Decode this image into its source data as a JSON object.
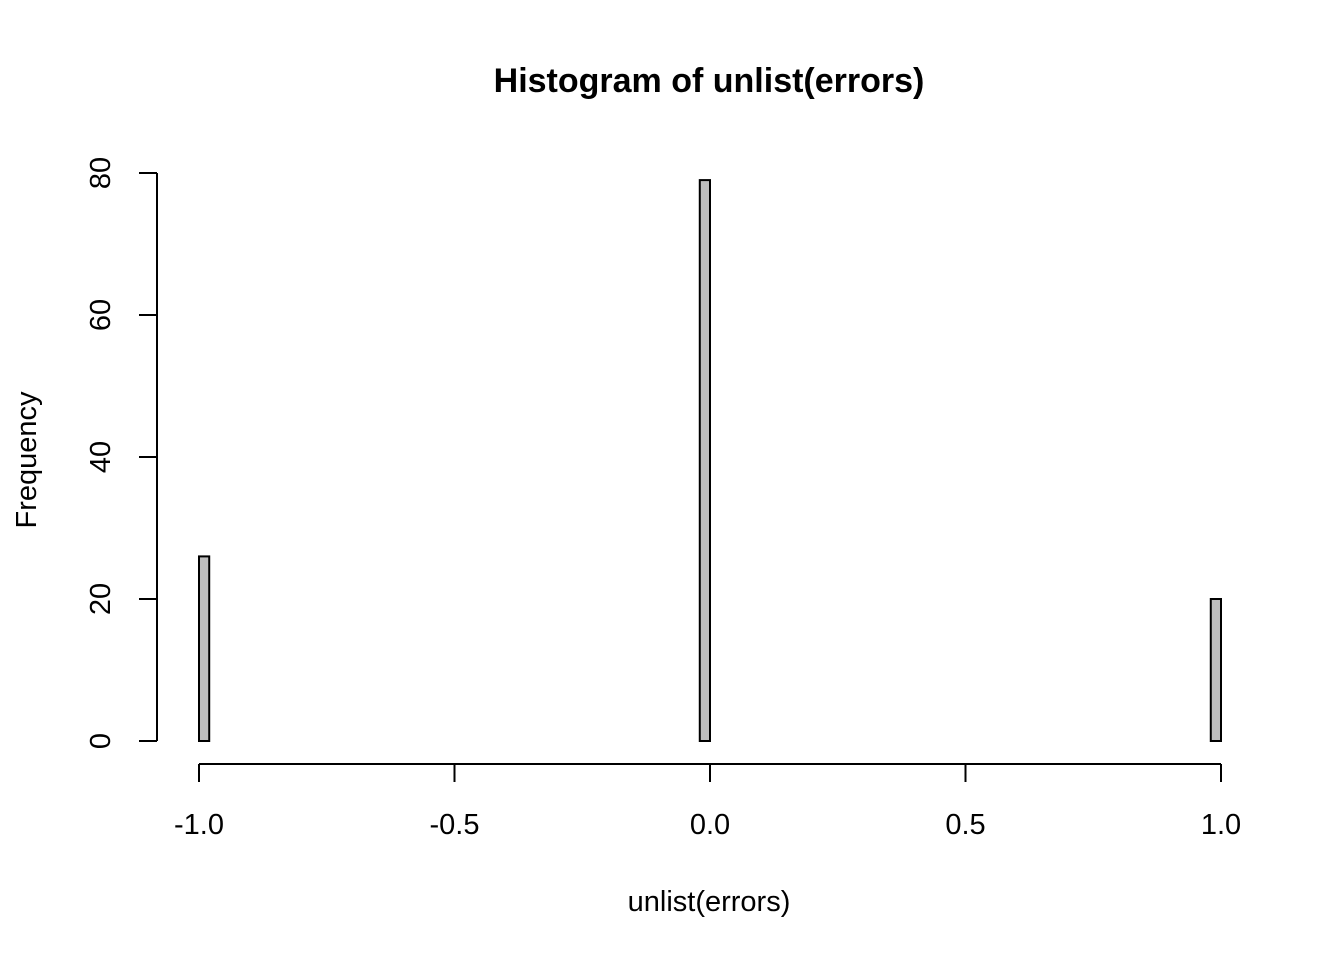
{
  "chart_data": {
    "type": "bar",
    "title": "Histogram of unlist(errors)",
    "xlabel": "unlist(errors)",
    "ylabel": "Frequency",
    "xlim": [
      -1.0,
      1.0
    ],
    "ylim": [
      0,
      80
    ],
    "x_ticks": [
      -1.0,
      -0.5,
      0.0,
      0.5,
      1.0
    ],
    "x_tick_labels": [
      "-1.0",
      "-0.5",
      "0.0",
      "0.5",
      "1.0"
    ],
    "y_ticks": [
      0,
      20,
      40,
      60,
      80
    ],
    "y_tick_labels": [
      "0",
      "20",
      "40",
      "60",
      "80"
    ],
    "bin_width": 0.02,
    "bins": [
      {
        "x0": -1.0,
        "x1": -0.98,
        "value": 26
      },
      {
        "x0": -0.02,
        "x1": 0.0,
        "value": 79
      },
      {
        "x0": 0.98,
        "x1": 1.0,
        "value": 20
      }
    ],
    "grid": false,
    "legend": "none",
    "bar_fill": "#bebebe",
    "bar_stroke": "#000000"
  }
}
